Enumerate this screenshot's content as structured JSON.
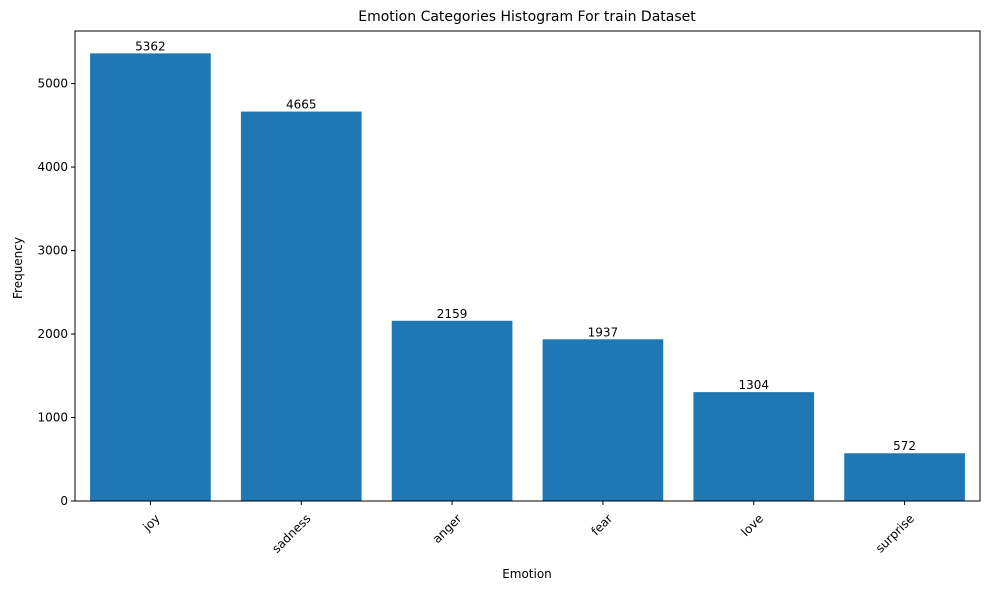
{
  "chart_data": {
    "type": "bar",
    "title": "Emotion Categories Histogram For train Dataset",
    "xlabel": "Emotion",
    "ylabel": "Frequency",
    "categories": [
      "joy",
      "sadness",
      "anger",
      "fear",
      "love",
      "surprise"
    ],
    "values": [
      5362,
      4665,
      2159,
      1937,
      1304,
      572
    ],
    "data_labels": [
      "5362",
      "4665",
      "2159",
      "1937",
      "1304",
      "572"
    ],
    "ylim": [
      0,
      5630
    ],
    "yticks": [
      0,
      1000,
      2000,
      3000,
      4000,
      5000
    ],
    "ytick_labels": [
      "0",
      "1000",
      "2000",
      "3000",
      "4000",
      "5000"
    ],
    "x_tick_rotation_deg": 45,
    "grid": false,
    "legend": "none",
    "bar_color": "#1f77b4"
  }
}
